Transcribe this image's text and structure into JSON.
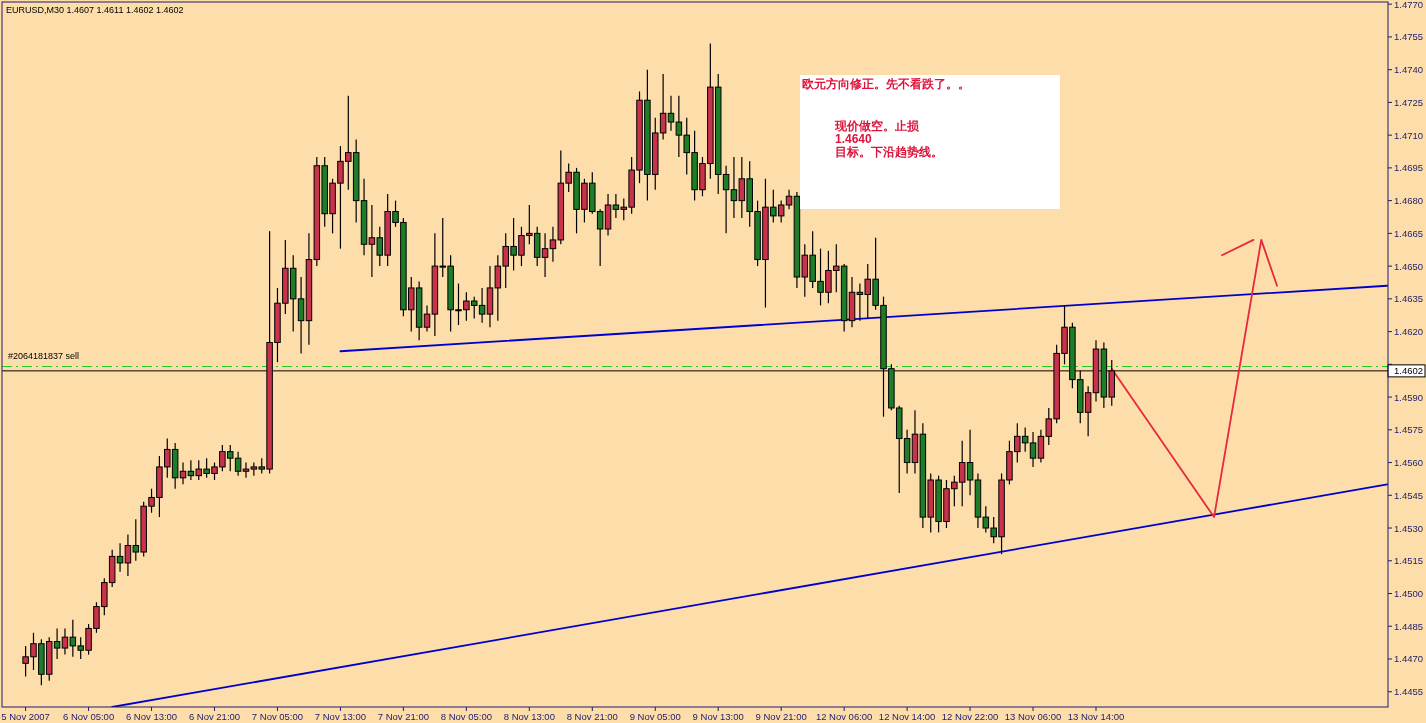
{
  "chart_data": {
    "type": "candlestick",
    "title": "EURUSD,M30  1.4607 1.4611 1.4602 1.4602",
    "annotations": [
      "欧元方向修正。先不看跌了。。",
      "现价做空。止损\n1.4640\n目标。下沿趋势线。"
    ],
    "ylim": [
      1.4448,
      1.4771
    ],
    "categories": [
      "5 Nov 2007",
      null,
      null,
      null,
      null,
      null,
      null,
      null,
      "6 Nov 05:00",
      null,
      null,
      null,
      null,
      null,
      null,
      null,
      "6 Nov 13:00",
      null,
      null,
      null,
      null,
      null,
      null,
      null,
      "6 Nov 21:00",
      null,
      null,
      null,
      null,
      null,
      null,
      null,
      "7 Nov 05:00",
      null,
      null,
      null,
      null,
      null,
      null,
      null,
      "7 Nov 13:00",
      null,
      null,
      null,
      null,
      null,
      null,
      null,
      "7 Nov 21:00",
      null,
      null,
      null,
      null,
      null,
      null,
      null,
      "8 Nov 05:00",
      null,
      null,
      null,
      null,
      null,
      null,
      null,
      "8 Nov 13:00",
      null,
      null,
      null,
      null,
      null,
      null,
      null,
      "8 Nov 21:00",
      null,
      null,
      null,
      null,
      null,
      null,
      null,
      "9 Nov 05:00",
      null,
      null,
      null,
      null,
      null,
      null,
      null,
      "9 Nov 13:00",
      null,
      null,
      null,
      null,
      null,
      null,
      null,
      "9 Nov 21:00",
      null,
      null,
      null,
      null,
      null,
      null,
      null,
      "12 Nov 06:00",
      null,
      null,
      null,
      null,
      null,
      null,
      null,
      "12 Nov 14:00",
      null,
      null,
      null,
      null,
      null,
      null,
      null,
      "12 Nov 22:00",
      null,
      null,
      null,
      null,
      null,
      null,
      null,
      "13 Nov 06:00",
      null,
      null,
      null,
      null,
      null,
      null,
      null,
      "13 Nov 14:00",
      null,
      null,
      null,
      null,
      null,
      null,
      null,
      null,
      null,
      null,
      null,
      null,
      null,
      null,
      null,
      null,
      null,
      null,
      null,
      null,
      null,
      null,
      null,
      null,
      null,
      null,
      null,
      null,
      null,
      null,
      null,
      null,
      null,
      null,
      null,
      null,
      null
    ],
    "yticks": [
      1.4455,
      {
        "value": 1.447,
        "label": "1.4470"
      },
      1.4485,
      {
        "value": 1.45,
        "label": "1.4500"
      },
      1.4515,
      {
        "value": 1.453,
        "label": "1.4530"
      },
      1.4545,
      {
        "value": 1.456,
        "label": "1.4560"
      },
      1.4575,
      {
        "value": 1.459,
        "label": "1.4590"
      },
      {
        "value": 1.4605,
        "label": null
      },
      {
        "value": 1.462,
        "label": "1.4620"
      },
      1.4635,
      {
        "value": 1.465,
        "label": "1.4650"
      },
      1.4665,
      {
        "value": 1.468,
        "label": "1.4680"
      },
      1.4695,
      {
        "value": 1.471,
        "label": "1.4710"
      },
      1.4725,
      {
        "value": 1.474,
        "label": "1.4740"
      },
      1.4755,
      {
        "value": 1.477,
        "label": "1.4770"
      }
    ],
    "ohlc": [
      [
        1.4468,
        1.4476,
        1.4462,
        1.4471
      ],
      [
        1.4471,
        1.4482,
        1.4465,
        1.4477
      ],
      [
        1.4477,
        1.4479,
        1.4458,
        1.4463
      ],
      [
        1.4463,
        1.448,
        1.446,
        1.4478
      ],
      [
        1.4478,
        1.4484,
        1.447,
        1.4475
      ],
      [
        1.4475,
        1.4484,
        1.4472,
        1.448
      ],
      [
        1.448,
        1.4488,
        1.4471,
        1.4476
      ],
      [
        1.4476,
        1.448,
        1.447,
        1.4474
      ],
      [
        1.4474,
        1.4486,
        1.4472,
        1.4484
      ],
      [
        1.4484,
        1.4496,
        1.4482,
        1.4494
      ],
      [
        1.4494,
        1.4507,
        1.449,
        1.4505
      ],
      [
        1.4505,
        1.452,
        1.4503,
        1.4517
      ],
      [
        1.4517,
        1.4523,
        1.451,
        1.4514
      ],
      [
        1.4514,
        1.4527,
        1.4508,
        1.4522
      ],
      [
        1.4522,
        1.4534,
        1.4515,
        1.4519
      ],
      [
        1.4519,
        1.4542,
        1.4517,
        1.454
      ],
      [
        1.454,
        1.4548,
        1.4537,
        1.4544
      ],
      [
        1.4544,
        1.4563,
        1.4535,
        1.4558
      ],
      [
        1.4558,
        1.4571,
        1.4553,
        1.4566
      ],
      [
        1.4566,
        1.4569,
        1.4548,
        1.4553
      ],
      [
        1.4553,
        1.456,
        1.455,
        1.4556
      ],
      [
        1.4556,
        1.4561,
        1.4552,
        1.4554
      ],
      [
        1.4554,
        1.4561,
        1.4552,
        1.4557
      ],
      [
        1.4557,
        1.4562,
        1.4553,
        1.4555
      ],
      [
        1.4555,
        1.456,
        1.4552,
        1.4558
      ],
      [
        1.4558,
        1.4568,
        1.4556,
        1.4565
      ],
      [
        1.4565,
        1.4568,
        1.4556,
        1.4562
      ],
      [
        1.4562,
        1.4565,
        1.4554,
        1.4556
      ],
      [
        1.4556,
        1.456,
        1.4553,
        1.4557
      ],
      [
        1.4557,
        1.456,
        1.4554,
        1.4558
      ],
      [
        1.4558,
        1.4562,
        1.4555,
        1.4557
      ],
      [
        1.4557,
        1.4666,
        1.4555,
        1.4615
      ],
      [
        1.4615,
        1.464,
        1.4606,
        1.4633
      ],
      [
        1.4633,
        1.4662,
        1.4628,
        1.4649
      ],
      [
        1.4649,
        1.4655,
        1.462,
        1.4635
      ],
      [
        1.4635,
        1.4645,
        1.461,
        1.4625
      ],
      [
        1.4625,
        1.4665,
        1.4614,
        1.4653
      ],
      [
        1.4653,
        1.47,
        1.465,
        1.4696
      ],
      [
        1.4696,
        1.47,
        1.4668,
        1.4674
      ],
      [
        1.4674,
        1.469,
        1.4665,
        1.4688
      ],
      [
        1.4688,
        1.4705,
        1.4658,
        1.4698
      ],
      [
        1.4698,
        1.4728,
        1.4685,
        1.4702
      ],
      [
        1.4702,
        1.4708,
        1.467,
        1.468
      ],
      [
        1.468,
        1.469,
        1.4655,
        1.466
      ],
      [
        1.466,
        1.4678,
        1.4645,
        1.4663
      ],
      [
        1.4663,
        1.4668,
        1.465,
        1.4655
      ],
      [
        1.4655,
        1.4683,
        1.465,
        1.4675
      ],
      [
        1.4675,
        1.468,
        1.4668,
        1.467
      ],
      [
        1.467,
        1.4672,
        1.4627,
        1.463
      ],
      [
        1.463,
        1.4645,
        1.462,
        1.464
      ],
      [
        1.464,
        1.4643,
        1.4616,
        1.4622
      ],
      [
        1.4622,
        1.4632,
        1.462,
        1.4628
      ],
      [
        1.4628,
        1.4665,
        1.4618,
        1.465
      ],
      [
        1.465,
        1.4672,
        1.4645,
        1.465
      ],
      [
        1.465,
        1.4655,
        1.462,
        1.463
      ],
      [
        1.463,
        1.4642,
        1.4623,
        1.463
      ],
      [
        1.463,
        1.4638,
        1.4625,
        1.4634
      ],
      [
        1.4634,
        1.4636,
        1.4626,
        1.4632
      ],
      [
        1.4632,
        1.464,
        1.4624,
        1.4628
      ],
      [
        1.4628,
        1.465,
        1.4622,
        1.464
      ],
      [
        1.464,
        1.4655,
        1.4625,
        1.465
      ],
      [
        1.465,
        1.4665,
        1.464,
        1.4659
      ],
      [
        1.4659,
        1.4672,
        1.4648,
        1.4655
      ],
      [
        1.4655,
        1.4668,
        1.465,
        1.4664
      ],
      [
        1.4664,
        1.4678,
        1.466,
        1.4665
      ],
      [
        1.4665,
        1.4668,
        1.465,
        1.4654
      ],
      [
        1.4654,
        1.4665,
        1.4645,
        1.4658
      ],
      [
        1.4658,
        1.4668,
        1.4652,
        1.4662
      ],
      [
        1.4662,
        1.4703,
        1.466,
        1.4688
      ],
      [
        1.4688,
        1.4697,
        1.4684,
        1.4693
      ],
      [
        1.4693,
        1.4695,
        1.4665,
        1.4676
      ],
      [
        1.4676,
        1.469,
        1.467,
        1.4688
      ],
      [
        1.4688,
        1.4693,
        1.4674,
        1.4675
      ],
      [
        1.4675,
        1.4676,
        1.465,
        1.4667
      ],
      [
        1.4667,
        1.4683,
        1.4664,
        1.4678
      ],
      [
        1.4678,
        1.4683,
        1.4672,
        1.4676
      ],
      [
        1.4676,
        1.4681,
        1.4671,
        1.4677
      ],
      [
        1.4677,
        1.47,
        1.4674,
        1.4694
      ],
      [
        1.4694,
        1.473,
        1.4688,
        1.4726
      ],
      [
        1.4726,
        1.474,
        1.468,
        1.4692
      ],
      [
        1.4692,
        1.4718,
        1.4685,
        1.4711
      ],
      [
        1.4711,
        1.4738,
        1.4708,
        1.472
      ],
      [
        1.472,
        1.4728,
        1.4712,
        1.4716
      ],
      [
        1.4716,
        1.4728,
        1.47,
        1.471
      ],
      [
        1.471,
        1.4718,
        1.4692,
        1.4702
      ],
      [
        1.4702,
        1.4712,
        1.468,
        1.4685
      ],
      [
        1.4685,
        1.47,
        1.4682,
        1.4697
      ],
      [
        1.4697,
        1.4752,
        1.469,
        1.4732
      ],
      [
        1.4732,
        1.4738,
        1.4683,
        1.4692
      ],
      [
        1.4692,
        1.4696,
        1.4665,
        1.4685
      ],
      [
        1.4685,
        1.47,
        1.4672,
        1.468
      ],
      [
        1.468,
        1.47,
        1.4672,
        1.469
      ],
      [
        1.469,
        1.4698,
        1.4668,
        1.4675
      ],
      [
        1.4675,
        1.468,
        1.465,
        1.4653
      ],
      [
        1.4653,
        1.469,
        1.4631,
        1.4677
      ],
      [
        1.4677,
        1.4685,
        1.467,
        1.4673
      ],
      [
        1.4673,
        1.468,
        1.467,
        1.4678
      ],
      [
        1.4678,
        1.4685,
        1.4676,
        1.4682
      ],
      [
        1.4682,
        1.4684,
        1.464,
        1.4645
      ],
      [
        1.4645,
        1.466,
        1.4636,
        1.4655
      ],
      [
        1.4655,
        1.4666,
        1.464,
        1.4643
      ],
      [
        1.4643,
        1.4658,
        1.4632,
        1.4638
      ],
      [
        1.4638,
        1.4657,
        1.4633,
        1.4648
      ],
      [
        1.4648,
        1.466,
        1.4638,
        1.465
      ],
      [
        1.465,
        1.4651,
        1.462,
        1.4625
      ],
      [
        1.4625,
        1.4645,
        1.4622,
        1.4638
      ],
      [
        1.4638,
        1.4642,
        1.4625,
        1.4637
      ],
      [
        1.4637,
        1.4651,
        1.4626,
        1.4644
      ],
      [
        1.4644,
        1.4663,
        1.463,
        1.4632
      ],
      [
        1.4632,
        1.4636,
        1.4581,
        1.4603
      ],
      [
        1.4603,
        1.4605,
        1.4584,
        1.4585
      ],
      [
        1.4585,
        1.4586,
        1.4546,
        1.4571
      ],
      [
        1.4571,
        1.4575,
        1.4555,
        1.456
      ],
      [
        1.456,
        1.4584,
        1.4555,
        1.4573
      ],
      [
        1.4573,
        1.4578,
        1.453,
        1.4535
      ],
      [
        1.4535,
        1.4555,
        1.4528,
        1.4552
      ],
      [
        1.4552,
        1.4554,
        1.4528,
        1.4533
      ],
      [
        1.4533,
        1.4552,
        1.453,
        1.4548
      ],
      [
        1.4548,
        1.4554,
        1.454,
        1.4551
      ],
      [
        1.4551,
        1.457,
        1.454,
        1.456
      ],
      [
        1.456,
        1.4575,
        1.4545,
        1.4552
      ],
      [
        1.4552,
        1.4555,
        1.453,
        1.4535
      ],
      [
        1.4535,
        1.454,
        1.4528,
        1.453
      ],
      [
        1.453,
        1.4535,
        1.4523,
        1.4526
      ],
      [
        1.4526,
        1.4555,
        1.4518,
        1.4552
      ],
      [
        1.4552,
        1.457,
        1.455,
        1.4565
      ],
      [
        1.4565,
        1.4578,
        1.456,
        1.4572
      ],
      [
        1.4572,
        1.4576,
        1.4565,
        1.4569
      ],
      [
        1.4569,
        1.4574,
        1.4558,
        1.4562
      ],
      [
        1.4562,
        1.4575,
        1.456,
        1.4572
      ],
      [
        1.4572,
        1.4585,
        1.4568,
        1.458
      ],
      [
        1.458,
        1.4614,
        1.4578,
        1.461
      ],
      [
        1.461,
        1.4632,
        1.4605,
        1.4622
      ],
      [
        1.4622,
        1.4624,
        1.4594,
        1.4598
      ],
      [
        1.4598,
        1.4602,
        1.4578,
        1.4583
      ],
      [
        1.4583,
        1.4595,
        1.4572,
        1.4592
      ],
      [
        1.4592,
        1.4616,
        1.4588,
        1.4612
      ],
      [
        1.4612,
        1.4615,
        1.4585,
        1.459
      ],
      [
        1.459,
        1.4607,
        1.4586,
        1.4602
      ],
      null,
      null,
      null,
      null,
      null,
      null,
      null,
      null,
      null,
      null,
      null,
      null,
      null,
      null,
      null,
      null,
      null,
      null,
      null,
      null,
      null,
      null,
      null,
      null,
      null,
      null,
      null,
      null,
      null,
      null,
      null,
      null,
      null,
      null,
      null
    ],
    "colors": [
      "#c8324a",
      "#c8324a",
      "#1e7d28",
      "#c8324a",
      "#1e7d28",
      "#c8324a",
      "#1e7d28",
      "#1e7d28",
      "#c8324a",
      "#c8324a",
      "#c8324a",
      "#c8324a",
      "#1e7d28",
      "#c8324a",
      "#1e7d28",
      "#c8324a",
      "#c8324a",
      "#c8324a",
      "#c8324a",
      "#1e7d28",
      "#c8324a",
      "#1e7d28",
      "#c8324a",
      "#1e7d28",
      "#c8324a",
      "#c8324a",
      "#1e7d28",
      "#1e7d28",
      "#c8324a",
      "#c8324a",
      "#1e7d28",
      "#c8324a",
      "#c8324a",
      "#c8324a",
      "#1e7d28",
      "#1e7d28",
      "#c8324a",
      "#c8324a",
      "#1e7d28",
      "#c8324a",
      "#c8324a",
      "#c8324a",
      "#1e7d28",
      "#1e7d28",
      "#c8324a",
      "#1e7d28",
      "#c8324a",
      "#1e7d28",
      "#1e7d28",
      "#c8324a",
      "#1e7d28",
      "#c8324a",
      "#c8324a",
      "#c8324a",
      "#1e7d28",
      "#c8324a",
      "#c8324a",
      "#1e7d28",
      "#1e7d28",
      "#c8324a",
      "#c8324a",
      "#c8324a",
      "#1e7d28",
      "#c8324a",
      "#c8324a",
      "#1e7d28",
      "#c8324a",
      "#c8324a",
      "#c8324a",
      "#c8324a",
      "#1e7d28",
      "#c8324a",
      "#1e7d28",
      "#1e7d28",
      "#c8324a",
      "#1e7d28",
      "#c8324a",
      "#c8324a",
      "#c8324a",
      "#1e7d28",
      "#c8324a",
      "#c8324a",
      "#1e7d28",
      "#1e7d28",
      "#1e7d28",
      "#1e7d28",
      "#c8324a",
      "#c8324a",
      "#1e7d28",
      "#1e7d28",
      "#1e7d28",
      "#c8324a",
      "#1e7d28",
      "#1e7d28",
      "#c8324a",
      "#1e7d28",
      "#c8324a",
      "#c8324a",
      "#1e7d28",
      "#c8324a",
      "#1e7d28",
      "#1e7d28",
      "#c8324a",
      "#c8324a",
      "#1e7d28",
      "#c8324a",
      "#1e7d28",
      "#c8324a",
      "#1e7d28",
      "#1e7d28",
      "#1e7d28",
      "#1e7d28",
      "#1e7d28",
      "#c8324a",
      "#1e7d28",
      "#c8324a",
      "#1e7d28",
      "#c8324a",
      "#c8324a",
      "#c8324a",
      "#1e7d28",
      "#1e7d28",
      "#1e7d28",
      "#1e7d28",
      "#c8324a",
      "#c8324a",
      "#c8324a",
      "#1e7d28",
      "#1e7d28",
      "#c8324a",
      "#c8324a",
      "#c8324a",
      "#c8324a",
      "#1e7d28",
      "#1e7d28",
      "#c8324a",
      "#c8324a",
      "#1e7d28",
      "#c8324a",
      null,
      null,
      null,
      null,
      null,
      null,
      null,
      null,
      null,
      null,
      null,
      null,
      null,
      null,
      null,
      null,
      null,
      null,
      null,
      null,
      null,
      null,
      null,
      null,
      null,
      null,
      null,
      null,
      null,
      null,
      null,
      null,
      null,
      null,
      null
    ],
    "series": [
      {
        "type": "line",
        "color": "#0000cc",
        "values": [
          null,
          null,
          null,
          null,
          null,
          null,
          null,
          null,
          null,
          null,
          null,
          null,
          null,
          null,
          null,
          null,
          null,
          null,
          null,
          null,
          null,
          null,
          null,
          null,
          null,
          null,
          null,
          null,
          null,
          null,
          null,
          null,
          null,
          null,
          null,
          null,
          null,
          null,
          null,
          null,
          1.4611,
          null,
          null,
          null,
          null,
          null,
          null,
          null,
          null,
          null,
          null,
          null,
          null,
          null,
          null,
          null,
          null,
          null,
          null,
          null,
          null,
          null,
          null,
          null,
          null,
          null,
          null,
          null,
          null,
          null,
          null,
          null,
          null,
          null,
          null,
          null,
          null,
          null,
          null,
          null,
          null,
          null,
          null,
          null,
          null,
          null,
          null,
          null,
          null,
          null,
          null,
          null,
          null,
          null,
          null,
          null,
          null,
          null,
          null,
          null,
          null,
          null,
          null,
          null,
          null,
          null,
          null,
          null,
          null,
          null,
          null,
          null,
          null,
          null,
          null,
          null,
          null,
          null,
          null,
          null,
          null,
          null,
          null,
          null,
          null,
          null,
          null,
          null,
          null,
          null,
          null,
          null,
          null,
          null,
          null,
          null,
          null,
          null,
          null,
          null,
          null,
          null,
          null,
          null,
          null,
          null,
          null,
          null,
          null,
          null,
          null,
          null,
          null,
          null,
          null,
          null,
          null,
          null,
          null,
          null,
          null,
          null,
          null,
          null,
          null,
          null,
          null,
          null,
          null,
          null,
          null,
          null,
          null,
          1.4641
        ]
      },
      {
        "type": "line",
        "color": "#0000cc",
        "values": [
          null,
          null,
          null,
          null,
          null,
          null,
          null,
          null,
          null,
          null,
          null,
          1.4448,
          null,
          null,
          null,
          null,
          null,
          null,
          null,
          null,
          null,
          null,
          null,
          null,
          null,
          null,
          null,
          null,
          null,
          null,
          null,
          null,
          null,
          null,
          null,
          null,
          null,
          null,
          null,
          null,
          null,
          null,
          null,
          null,
          null,
          null,
          null,
          null,
          null,
          null,
          null,
          null,
          null,
          null,
          null,
          null,
          null,
          null,
          null,
          null,
          null,
          null,
          null,
          null,
          null,
          null,
          null,
          null,
          null,
          null,
          null,
          null,
          null,
          null,
          null,
          null,
          null,
          null,
          null,
          null,
          null,
          null,
          null,
          null,
          null,
          null,
          null,
          null,
          null,
          null,
          null,
          null,
          null,
          null,
          null,
          null,
          null,
          null,
          null,
          null,
          null,
          null,
          null,
          null,
          null,
          null,
          null,
          null,
          null,
          null,
          null,
          null,
          null,
          null,
          null,
          null,
          null,
          null,
          null,
          null,
          null,
          null,
          null,
          null,
          null,
          null,
          null,
          null,
          null,
          null,
          null,
          null,
          null,
          null,
          null,
          null,
          null,
          null,
          null,
          null,
          null,
          null,
          null,
          null,
          null,
          null,
          null,
          null,
          null,
          null,
          null,
          null,
          null,
          null,
          null,
          null,
          null,
          null,
          null,
          null,
          null,
          null,
          null,
          null,
          null,
          null,
          null,
          null,
          null,
          null,
          null,
          null,
          null,
          1.455
        ]
      },
      {
        "type": "line",
        "color": "#e8283c",
        "values": [
          null,
          null,
          null,
          null,
          null,
          null,
          null,
          null,
          null,
          null,
          null,
          null,
          null,
          null,
          null,
          null,
          null,
          null,
          null,
          null,
          null,
          null,
          null,
          null,
          null,
          null,
          null,
          null,
          null,
          null,
          null,
          null,
          null,
          null,
          null,
          null,
          null,
          null,
          null,
          null,
          null,
          null,
          null,
          null,
          null,
          null,
          null,
          null,
          null,
          null,
          null,
          null,
          null,
          null,
          null,
          null,
          null,
          null,
          null,
          null,
          null,
          null,
          null,
          null,
          null,
          null,
          null,
          null,
          null,
          null,
          null,
          null,
          null,
          null,
          null,
          null,
          null,
          null,
          null,
          null,
          null,
          null,
          null,
          null,
          null,
          null,
          null,
          null,
          null,
          null,
          null,
          null,
          null,
          null,
          null,
          null,
          null,
          null,
          null,
          null,
          null,
          null,
          null,
          null,
          null,
          null,
          null,
          null,
          null,
          null,
          null,
          null,
          null,
          null,
          null,
          null,
          null,
          null,
          null,
          null,
          null,
          null,
          null,
          null,
          null,
          null,
          null,
          null,
          null,
          null,
          null,
          null,
          null,
          null,
          null,
          null,
          null,
          null,
          1.4603,
          null,
          null,
          null,
          null,
          null,
          null,
          null,
          null,
          null,
          null,
          null,
          null,
          1.4535,
          null,
          null,
          null,
          null,
          null,
          1.4662,
          null,
          1.4641,
          null,
          null,
          null,
          null,
          null,
          null,
          null,
          null,
          null,
          null,
          null,
          null,
          null,
          null
        ]
      },
      {
        "type": "line",
        "color": "#e8283c",
        "values": [
          null,
          null,
          null,
          null,
          null,
          null,
          null,
          null,
          null,
          null,
          null,
          null,
          null,
          null,
          null,
          null,
          null,
          null,
          null,
          null,
          null,
          null,
          null,
          null,
          null,
          null,
          null,
          null,
          null,
          null,
          null,
          null,
          null,
          null,
          null,
          null,
          null,
          null,
          null,
          null,
          null,
          null,
          null,
          null,
          null,
          null,
          null,
          null,
          null,
          null,
          null,
          null,
          null,
          null,
          null,
          null,
          null,
          null,
          null,
          null,
          null,
          null,
          null,
          null,
          null,
          null,
          null,
          null,
          null,
          null,
          null,
          null,
          null,
          null,
          null,
          null,
          null,
          null,
          null,
          null,
          null,
          null,
          null,
          null,
          null,
          null,
          null,
          null,
          null,
          null,
          null,
          null,
          null,
          null,
          null,
          null,
          null,
          null,
          null,
          null,
          null,
          null,
          null,
          null,
          null,
          null,
          null,
          null,
          null,
          null,
          null,
          null,
          null,
          null,
          null,
          null,
          null,
          null,
          null,
          null,
          null,
          null,
          null,
          null,
          null,
          null,
          null,
          null,
          null,
          null,
          null,
          null,
          null,
          null,
          null,
          null,
          null,
          null,
          null,
          null,
          null,
          null,
          null,
          null,
          null,
          null,
          null,
          null,
          null,
          null,
          null,
          null,
          1.4655,
          null,
          null,
          null,
          1.4662,
          null,
          null,
          null,
          null,
          null,
          null,
          null,
          null,
          null,
          null,
          null,
          null,
          null,
          null,
          null,
          null,
          null
        ]
      }
    ],
    "ref_lines": [
      {
        "axis": "y",
        "value": 1.4604,
        "label": "#2064181837 sell",
        "color": "#22cc22",
        "line_style": "dashed"
      },
      {
        "axis": "y",
        "value": 1.4602,
        "label": "1.4602",
        "color": "#000000",
        "line_style": "solid"
      }
    ]
  }
}
